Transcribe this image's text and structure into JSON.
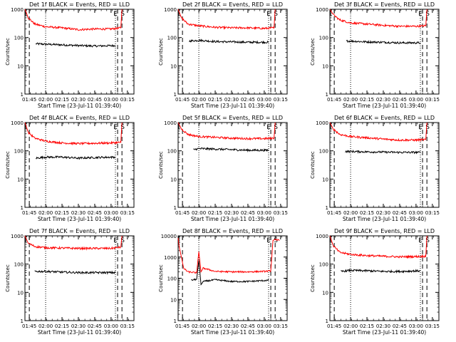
{
  "figure": {
    "xlabel_prefix": "Start Time (23-Jul-11 01:39:40)",
    "ylabel": "Counts/sec",
    "legend_text": "BLACK = Events, RED = LLD",
    "marker_labels": [
      "E",
      "S"
    ],
    "colors": {
      "events": "#000000",
      "lld": "#ff0000",
      "axes": "#000000",
      "background": "#ffffff"
    }
  },
  "chart_data": [
    {
      "type": "line",
      "title": "Det 1f BLACK = Events, RED = LLD",
      "xlabel": "Start Time (23-Jul-11 01:39:40)",
      "ylabel": "Counts/sec",
      "yscale": "log",
      "ylim": [
        1,
        1000
      ],
      "x_ticks": [
        "01:45",
        "02:00",
        "02:15",
        "02:30",
        "02:45",
        "03:00",
        "03:15"
      ],
      "y_ticks": [
        "1",
        "10",
        "100",
        "1000"
      ],
      "series": [
        {
          "name": "Events",
          "color": "#000000",
          "x": [
            "01:51",
            "02:00",
            "02:15",
            "02:30",
            "02:45",
            "03:04"
          ],
          "values": [
            60,
            58,
            55,
            52,
            50,
            52
          ]
        },
        {
          "name": "LLD",
          "color": "#ff0000",
          "x": [
            "01:41",
            "01:44",
            "01:50",
            "02:00",
            "02:15",
            "02:30",
            "02:45",
            "03:00",
            "03:09",
            "03:10"
          ],
          "values": [
            1000,
            500,
            300,
            240,
            220,
            190,
            200,
            200,
            220,
            1000
          ]
        }
      ],
      "markers": {
        "dashed": [
          "01:45",
          "03:06",
          "03:10"
        ],
        "dotted": [
          "02:00",
          "03:04"
        ]
      }
    },
    {
      "type": "line",
      "title": "Det 2f BLACK = Events, RED = LLD",
      "xlabel": "Start Time (23-Jul-11 01:39:40)",
      "ylabel": "Counts/sec",
      "yscale": "log",
      "ylim": [
        1,
        1000
      ],
      "x_ticks": [
        "01:45",
        "02:00",
        "02:15",
        "02:30",
        "02:45",
        "03:00",
        "03:15"
      ],
      "y_ticks": [
        "1",
        "10",
        "100",
        "1000"
      ],
      "series": [
        {
          "name": "Events",
          "color": "#000000",
          "x": [
            "01:51",
            "02:00",
            "02:15",
            "02:30",
            "02:45",
            "03:04"
          ],
          "values": [
            75,
            80,
            72,
            70,
            68,
            68
          ]
        },
        {
          "name": "LLD",
          "color": "#ff0000",
          "x": [
            "01:41",
            "01:44",
            "01:50",
            "02:00",
            "02:15",
            "02:30",
            "02:45",
            "03:00",
            "03:09",
            "03:10"
          ],
          "values": [
            1000,
            500,
            300,
            260,
            230,
            220,
            220,
            210,
            220,
            1000
          ]
        }
      ],
      "markers": {
        "dashed": [
          "01:45",
          "03:06",
          "03:10"
        ],
        "dotted": [
          "02:00",
          "03:04"
        ]
      }
    },
    {
      "type": "line",
      "title": "Det 3f BLACK = Events, RED = LLD",
      "xlabel": "Start Time (23-Jul-11 01:39:40)",
      "ylabel": "Counts/sec",
      "yscale": "log",
      "ylim": [
        1,
        1000
      ],
      "x_ticks": [
        "01:45",
        "02:00",
        "02:15",
        "02:30",
        "02:45",
        "03:00",
        "03:15"
      ],
      "y_ticks": [
        "1",
        "10",
        "100",
        "1000"
      ],
      "series": [
        {
          "name": "Events",
          "color": "#000000",
          "x": [
            "01:56",
            "02:00",
            "02:15",
            "02:30",
            "02:45",
            "03:04"
          ],
          "values": [
            75,
            75,
            70,
            68,
            65,
            65
          ]
        },
        {
          "name": "LLD",
          "color": "#ff0000",
          "x": [
            "01:41",
            "01:44",
            "01:50",
            "02:00",
            "02:15",
            "02:30",
            "02:45",
            "03:00",
            "03:09",
            "03:10"
          ],
          "values": [
            1000,
            650,
            420,
            330,
            300,
            270,
            250,
            250,
            260,
            1000
          ]
        }
      ],
      "markers": {
        "dashed": [
          "01:45",
          "03:06",
          "03:10"
        ],
        "dotted": [
          "02:00",
          "03:04"
        ]
      }
    },
    {
      "type": "line",
      "title": "Det 4f BLACK = Events, RED = LLD",
      "xlabel": "Start Time (23-Jul-11 01:39:40)",
      "ylabel": "Counts/sec",
      "yscale": "log",
      "ylim": [
        1,
        1000
      ],
      "x_ticks": [
        "01:45",
        "02:00",
        "02:15",
        "02:30",
        "02:45",
        "03:00",
        "03:15"
      ],
      "y_ticks": [
        "1",
        "10",
        "100",
        "1000"
      ],
      "series": [
        {
          "name": "Events",
          "color": "#000000",
          "x": [
            "01:51",
            "02:00",
            "02:15",
            "02:30",
            "02:45",
            "03:04"
          ],
          "values": [
            55,
            60,
            60,
            55,
            58,
            60
          ]
        },
        {
          "name": "LLD",
          "color": "#ff0000",
          "x": [
            "01:41",
            "01:44",
            "01:50",
            "02:00",
            "02:15",
            "02:30",
            "02:45",
            "03:00",
            "03:09",
            "03:10"
          ],
          "values": [
            1000,
            450,
            280,
            220,
            190,
            180,
            185,
            190,
            200,
            1000
          ]
        }
      ],
      "markers": {
        "dashed": [
          "01:45",
          "03:06",
          "03:10"
        ],
        "dotted": [
          "02:00",
          "03:04"
        ]
      }
    },
    {
      "type": "line",
      "title": "Det 5f BLACK = Events, RED = LLD",
      "xlabel": "Start Time (23-Jul-11 01:39:40)",
      "ylabel": "Counts/sec",
      "yscale": "log",
      "ylim": [
        1,
        1000
      ],
      "x_ticks": [
        "01:45",
        "02:00",
        "02:15",
        "02:30",
        "02:45",
        "03:00",
        "03:15"
      ],
      "y_ticks": [
        "1",
        "10",
        "100",
        "1000"
      ],
      "series": [
        {
          "name": "Events",
          "color": "#000000",
          "x": [
            "01:55",
            "02:00",
            "02:15",
            "02:30",
            "02:45",
            "03:04"
          ],
          "values": [
            110,
            120,
            115,
            110,
            105,
            105
          ]
        },
        {
          "name": "LLD",
          "color": "#ff0000",
          "x": [
            "01:41",
            "01:44",
            "01:50",
            "02:00",
            "02:15",
            "02:30",
            "02:45",
            "03:00",
            "03:09",
            "03:10"
          ],
          "values": [
            1000,
            600,
            380,
            320,
            300,
            280,
            270,
            270,
            280,
            1000
          ]
        }
      ],
      "markers": {
        "dashed": [
          "01:45",
          "03:06",
          "03:10"
        ],
        "dotted": [
          "02:00",
          "03:04"
        ]
      }
    },
    {
      "type": "line",
      "title": "Det 6f BLACK = Events, RED = LLD",
      "xlabel": "Start Time (23-Jul-11 01:39:40)",
      "ylabel": "Counts/sec",
      "yscale": "log",
      "ylim": [
        1,
        1000
      ],
      "x_ticks": [
        "01:45",
        "02:00",
        "02:15",
        "02:30",
        "02:45",
        "03:00",
        "03:15"
      ],
      "y_ticks": [
        "1",
        "10",
        "100",
        "1000"
      ],
      "series": [
        {
          "name": "Events",
          "color": "#000000",
          "x": [
            "01:55",
            "02:00",
            "02:15",
            "02:30",
            "02:45",
            "03:04"
          ],
          "values": [
            95,
            95,
            92,
            90,
            88,
            88
          ]
        },
        {
          "name": "LLD",
          "color": "#ff0000",
          "x": [
            "01:41",
            "01:44",
            "01:50",
            "02:00",
            "02:15",
            "02:30",
            "02:45",
            "03:00",
            "03:09",
            "03:10"
          ],
          "values": [
            1000,
            600,
            380,
            320,
            290,
            260,
            240,
            240,
            250,
            1000
          ]
        }
      ],
      "markers": {
        "dashed": [
          "01:45",
          "03:06",
          "03:10"
        ],
        "dotted": [
          "02:00",
          "03:04"
        ]
      }
    },
    {
      "type": "line",
      "title": "Det 7f BLACK = Events, RED = LLD",
      "xlabel": "Start Time (23-Jul-11 01:39:40)",
      "ylabel": "Counts/sec",
      "yscale": "log",
      "ylim": [
        1,
        1000
      ],
      "x_ticks": [
        "01:45",
        "02:00",
        "02:15",
        "02:30",
        "02:45",
        "03:00",
        "03:15"
      ],
      "y_ticks": [
        "1",
        "10",
        "100",
        "1000"
      ],
      "series": [
        {
          "name": "Events",
          "color": "#000000",
          "x": [
            "01:50",
            "02:00",
            "02:15",
            "02:30",
            "02:45",
            "03:04"
          ],
          "values": [
            55,
            55,
            52,
            50,
            50,
            50
          ]
        },
        {
          "name": "LLD",
          "color": "#ff0000",
          "x": [
            "01:41",
            "01:44",
            "01:50",
            "02:00",
            "02:15",
            "02:30",
            "02:45",
            "03:00",
            "03:09",
            "03:10"
          ],
          "values": [
            1000,
            550,
            420,
            380,
            370,
            360,
            360,
            360,
            400,
            1000
          ]
        }
      ],
      "markers": {
        "dashed": [
          "01:45",
          "03:06",
          "03:10"
        ],
        "dotted": [
          "02:00",
          "03:04"
        ]
      }
    },
    {
      "type": "line",
      "title": "Det 8f BLACK = Events, RED = LLD",
      "xlabel": "Start Time (23-Jul-11 01:39:40)",
      "ylabel": "Counts/sec",
      "yscale": "log",
      "ylim": [
        1,
        10000
      ],
      "x_ticks": [
        "01:45",
        "02:00",
        "02:15",
        "02:30",
        "02:45",
        "03:00",
        "03:15"
      ],
      "y_ticks": [
        "1",
        "10",
        "100",
        "1000",
        "10000"
      ],
      "series": [
        {
          "name": "Events",
          "color": "#000000",
          "x": [
            "01:53",
            "01:58",
            "02:00",
            "02:02",
            "02:04",
            "02:15",
            "02:30",
            "02:45",
            "03:04"
          ],
          "values": [
            80,
            90,
            700,
            50,
            70,
            85,
            70,
            70,
            80
          ]
        },
        {
          "name": "LLD",
          "color": "#ff0000",
          "x": [
            "01:41",
            "01:42",
            "01:44",
            "01:46",
            "01:50",
            "01:58",
            "02:00",
            "02:02",
            "02:04",
            "02:15",
            "02:30",
            "02:45",
            "03:00",
            "03:06",
            "03:08",
            "03:10",
            "03:14"
          ],
          "values": [
            8000,
            3000,
            1000,
            300,
            200,
            180,
            1800,
            200,
            300,
            210,
            200,
            200,
            210,
            220,
            6000,
            7000,
            6000
          ]
        }
      ],
      "markers": {
        "dashed": [
          "01:45",
          "03:06",
          "03:10"
        ],
        "dotted": [
          "02:00",
          "03:04"
        ]
      }
    },
    {
      "type": "line",
      "title": "Det 9f BLACK = Events, RED = LLD",
      "xlabel": "Start Time (23-Jul-11 01:39:40)",
      "ylabel": "Counts/sec",
      "yscale": "log",
      "ylim": [
        1,
        1000
      ],
      "x_ticks": [
        "01:45",
        "02:00",
        "02:15",
        "02:30",
        "02:45",
        "03:00",
        "03:15"
      ],
      "y_ticks": [
        "1",
        "10",
        "100",
        "1000"
      ],
      "series": [
        {
          "name": "Events",
          "color": "#000000",
          "x": [
            "01:51",
            "02:00",
            "02:15",
            "02:30",
            "02:45",
            "03:04"
          ],
          "values": [
            55,
            60,
            58,
            55,
            55,
            58
          ]
        },
        {
          "name": "LLD",
          "color": "#ff0000",
          "x": [
            "01:41",
            "01:44",
            "01:50",
            "02:00",
            "02:15",
            "02:30",
            "02:45",
            "03:00",
            "03:09",
            "03:10"
          ],
          "values": [
            1000,
            450,
            260,
            220,
            200,
            190,
            180,
            185,
            190,
            1000
          ]
        }
      ],
      "markers": {
        "dashed": [
          "01:45",
          "03:06",
          "03:10"
        ],
        "dotted": [
          "02:00",
          "03:04"
        ]
      }
    }
  ]
}
